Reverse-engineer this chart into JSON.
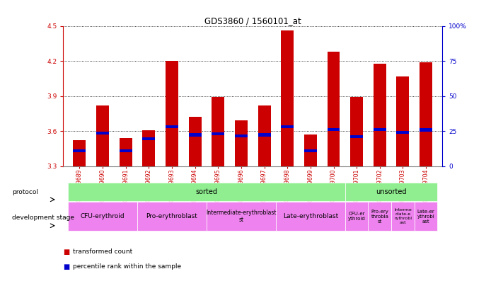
{
  "title": "GDS3860 / 1560101_at",
  "samples": [
    "GSM559689",
    "GSM559690",
    "GSM559691",
    "GSM559692",
    "GSM559693",
    "GSM559694",
    "GSM559695",
    "GSM559696",
    "GSM559697",
    "GSM559698",
    "GSM559699",
    "GSM559700",
    "GSM559701",
    "GSM559702",
    "GSM559703",
    "GSM559704"
  ],
  "transformed_count": [
    3.52,
    3.82,
    3.54,
    3.61,
    4.2,
    3.72,
    3.89,
    3.69,
    3.82,
    4.46,
    3.57,
    4.28,
    3.89,
    4.18,
    4.07,
    4.19
  ],
  "percentile_rank": [
    3.43,
    3.585,
    3.43,
    3.535,
    3.64,
    3.568,
    3.575,
    3.56,
    3.568,
    3.64,
    3.43,
    3.615,
    3.555,
    3.615,
    3.59,
    3.61
  ],
  "ylim": [
    3.3,
    4.5
  ],
  "yticks_left": [
    3.3,
    3.6,
    3.9,
    4.2,
    4.5
  ],
  "yticks_right": [
    0,
    25,
    50,
    75,
    100
  ],
  "bar_color": "#cc0000",
  "percentile_color": "#0000cc",
  "bar_width": 0.55,
  "bg_color": "#ffffff",
  "xlabel_color": "#cc0000",
  "ylabel_right_color": "#0000cc",
  "protocol_blocks": [
    {
      "label": "sorted",
      "start": 0,
      "end": 12,
      "color": "#90ee90"
    },
    {
      "label": "unsorted",
      "start": 12,
      "end": 16,
      "color": "#90ee90"
    }
  ],
  "dev_stage_blocks": [
    {
      "label": "CFU-erythroid",
      "start": 0,
      "end": 3,
      "color": "#ee82ee",
      "fontsize": 6.5
    },
    {
      "label": "Pro-erythroblast",
      "start": 3,
      "end": 6,
      "color": "#ee82ee",
      "fontsize": 6.5
    },
    {
      "label": "Intermediate-erythroblast\nst",
      "start": 6,
      "end": 9,
      "color": "#ee82ee",
      "fontsize": 5.5
    },
    {
      "label": "Late-erythroblast",
      "start": 9,
      "end": 12,
      "color": "#ee82ee",
      "fontsize": 6.5
    },
    {
      "label": "CFU-er\nythroid",
      "start": 12,
      "end": 13,
      "color": "#ee82ee",
      "fontsize": 5
    },
    {
      "label": "Pro-ery\nthrobla\nst",
      "start": 13,
      "end": 14,
      "color": "#ee82ee",
      "fontsize": 5
    },
    {
      "label": "Interme\ndiate-e\nrythrobl\nast",
      "start": 14,
      "end": 15,
      "color": "#ee82ee",
      "fontsize": 4.5
    },
    {
      "label": "Late-er\nythrobl\nast",
      "start": 15,
      "end": 16,
      "color": "#ee82ee",
      "fontsize": 5
    }
  ],
  "legend_items": [
    {
      "label": "transformed count",
      "color": "#cc0000"
    },
    {
      "label": "percentile rank within the sample",
      "color": "#0000cc"
    }
  ]
}
